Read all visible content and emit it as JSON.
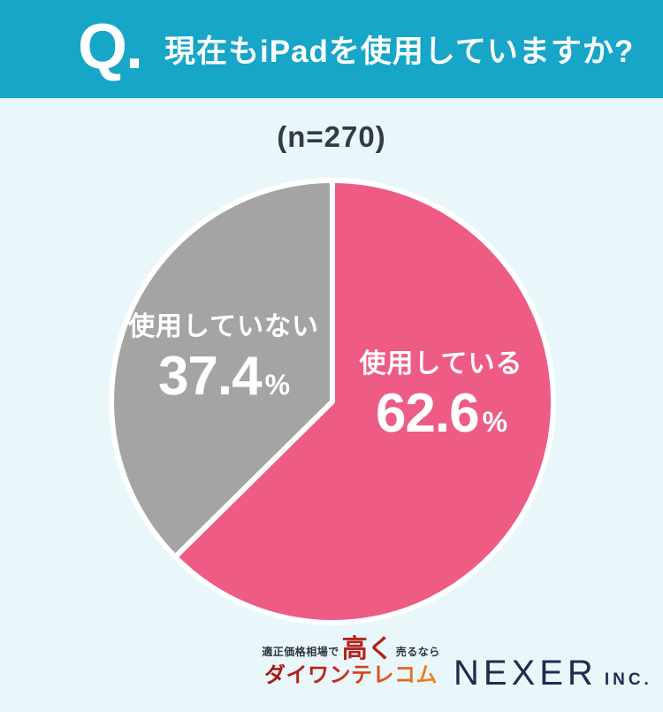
{
  "header": {
    "q_label": "Q.",
    "title": "現在もiPadを使用していますか?"
  },
  "chart_data": {
    "type": "pie",
    "title": "現在もiPadを使用していますか?",
    "sample_size_label": "(n=270)",
    "n": 270,
    "unit": "%",
    "start_angle": "12-oclock",
    "direction": "clockwise",
    "legend_position": "on-slice",
    "separator_color": "#ffffff",
    "slices": [
      {
        "label": "使用している",
        "value": 62.6,
        "value_label": "62.6",
        "color": "#ee5c85",
        "text_color": "#ffffff"
      },
      {
        "label": "使用していない",
        "value": 37.4,
        "value_label": "37.4",
        "color": "#a4a4a4",
        "text_color": "#ffffff"
      }
    ]
  },
  "footer": {
    "daiwan": {
      "tagline_prefix": "適正価格相場で",
      "tagline_highlight": "高く",
      "tagline_suffix": "売るなら",
      "brand": "ダイワンテレコム"
    },
    "nexer": {
      "brand": "NEXER",
      "suffix": "INC."
    }
  },
  "colors": {
    "header_bg": "#17a5c8",
    "page_bg": "#e9f7fa",
    "accent_pink": "#ee5c85",
    "slice_gray": "#a4a4a4",
    "text_dark": "#333b40",
    "tagline_dark": "#2e3338",
    "daiwan_red": "#b5221b",
    "nexer_navy": "#1e2c50"
  }
}
